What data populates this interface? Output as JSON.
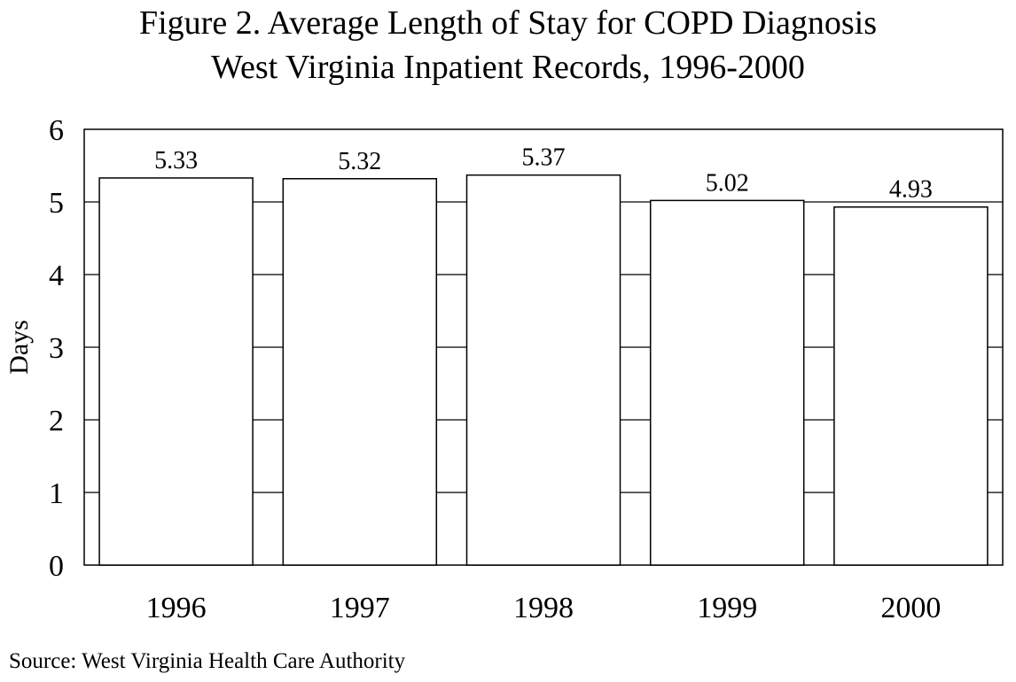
{
  "chart_data": {
    "type": "bar",
    "title": "Figure 2.  Average Length of Stay for COPD Diagnosis",
    "subtitle": "West Virginia Inpatient Records, 1996-2000",
    "xlabel": "",
    "ylabel": "Days",
    "categories": [
      "1996",
      "1997",
      "1998",
      "1999",
      "2000"
    ],
    "values": [
      5.33,
      5.32,
      5.37,
      5.02,
      4.93
    ],
    "data_labels": [
      "5.33",
      "5.32",
      "5.37",
      "5.02",
      "4.93"
    ],
    "ylim": [
      0,
      6
    ],
    "yticks": [
      "0",
      "1",
      "2",
      "3",
      "4",
      "5",
      "6"
    ],
    "grid": true,
    "legend": "none",
    "bar_fill": "#ffffff",
    "bar_stroke": "#000000",
    "source": "Source: West Virginia Health Care Authority"
  }
}
